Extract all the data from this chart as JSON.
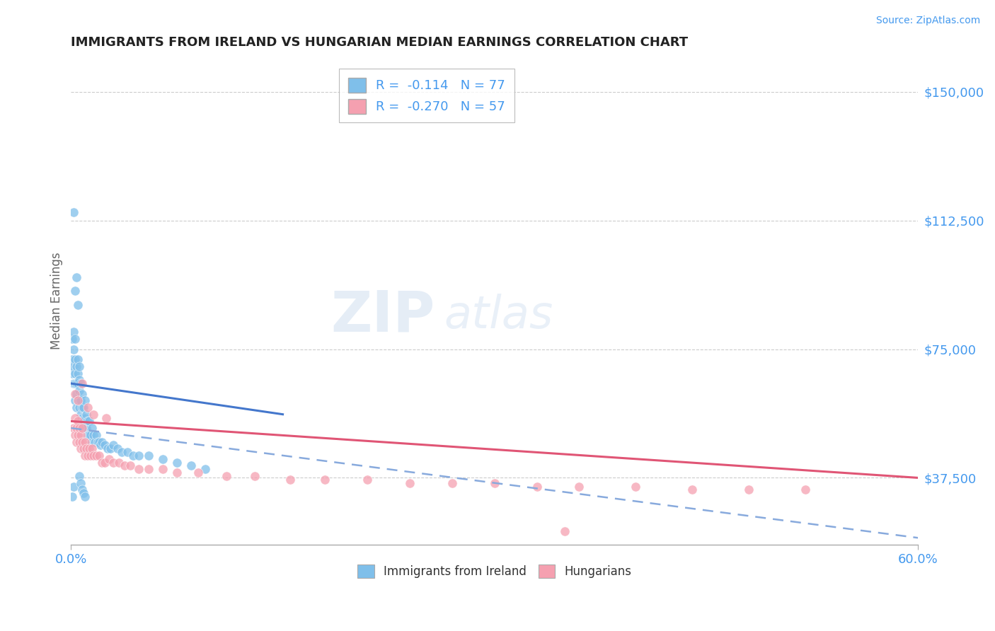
{
  "title": "IMMIGRANTS FROM IRELAND VS HUNGARIAN MEDIAN EARNINGS CORRELATION CHART",
  "source_text": "Source: ZipAtlas.com",
  "ylabel": "Median Earnings",
  "xlim": [
    0.0,
    0.6
  ],
  "ylim": [
    18000,
    160000
  ],
  "yticks": [
    37500,
    75000,
    112500,
    150000
  ],
  "ytick_labels": [
    "$37,500",
    "$75,000",
    "$112,500",
    "$150,000"
  ],
  "xtick_labels": [
    "0.0%",
    "60.0%"
  ],
  "r_ireland": -0.114,
  "n_ireland": 77,
  "r_hungarian": -0.27,
  "n_hungarian": 57,
  "color_ireland": "#7fbfea",
  "color_hungarian": "#f5a0b0",
  "color_ireland_line": "#4477cc",
  "color_hungarian_line": "#e05575",
  "color_dashed_line": "#88aadd",
  "background_color": "#ffffff",
  "grid_color": "#cccccc",
  "title_color": "#222222",
  "axis_label_color": "#666666",
  "tick_color": "#4499ee",
  "legend_edge_color": "#aaaaaa",
  "ireland_x": [
    0.001,
    0.001,
    0.001,
    0.002,
    0.002,
    0.002,
    0.002,
    0.003,
    0.003,
    0.003,
    0.003,
    0.003,
    0.004,
    0.004,
    0.004,
    0.004,
    0.005,
    0.005,
    0.005,
    0.005,
    0.006,
    0.006,
    0.006,
    0.006,
    0.006,
    0.007,
    0.007,
    0.007,
    0.008,
    0.008,
    0.008,
    0.009,
    0.009,
    0.01,
    0.01,
    0.01,
    0.011,
    0.011,
    0.012,
    0.012,
    0.013,
    0.013,
    0.014,
    0.015,
    0.015,
    0.016,
    0.017,
    0.018,
    0.019,
    0.02,
    0.021,
    0.022,
    0.024,
    0.026,
    0.028,
    0.03,
    0.033,
    0.036,
    0.04,
    0.044,
    0.048,
    0.055,
    0.065,
    0.075,
    0.085,
    0.095,
    0.002,
    0.003,
    0.004,
    0.005,
    0.001,
    0.002,
    0.006,
    0.007,
    0.008,
    0.009,
    0.01
  ],
  "ireland_y": [
    68000,
    72000,
    78000,
    65000,
    70000,
    75000,
    80000,
    60000,
    65000,
    68000,
    72000,
    78000,
    58000,
    62000,
    65000,
    70000,
    60000,
    65000,
    68000,
    72000,
    58000,
    60000,
    63000,
    66000,
    70000,
    56000,
    60000,
    65000,
    55000,
    58000,
    62000,
    54000,
    58000,
    52000,
    55000,
    60000,
    52000,
    56000,
    50000,
    54000,
    50000,
    54000,
    50000,
    48000,
    52000,
    50000,
    48000,
    50000,
    48000,
    48000,
    47000,
    48000,
    47000,
    46000,
    46000,
    47000,
    46000,
    45000,
    45000,
    44000,
    44000,
    44000,
    43000,
    42000,
    41000,
    40000,
    115000,
    92000,
    96000,
    88000,
    32000,
    35000,
    38000,
    36000,
    34000,
    33000,
    32000
  ],
  "hungarian_x": [
    0.002,
    0.003,
    0.003,
    0.004,
    0.004,
    0.005,
    0.005,
    0.006,
    0.006,
    0.007,
    0.007,
    0.008,
    0.008,
    0.009,
    0.01,
    0.01,
    0.011,
    0.012,
    0.013,
    0.014,
    0.015,
    0.016,
    0.018,
    0.02,
    0.022,
    0.024,
    0.027,
    0.03,
    0.034,
    0.038,
    0.042,
    0.048,
    0.055,
    0.065,
    0.075,
    0.09,
    0.11,
    0.13,
    0.155,
    0.18,
    0.21,
    0.24,
    0.27,
    0.3,
    0.33,
    0.36,
    0.4,
    0.44,
    0.48,
    0.52,
    0.003,
    0.005,
    0.008,
    0.012,
    0.016,
    0.025,
    0.35
  ],
  "hungarian_y": [
    52000,
    55000,
    50000,
    52000,
    48000,
    50000,
    54000,
    48000,
    52000,
    50000,
    46000,
    48000,
    52000,
    46000,
    48000,
    44000,
    46000,
    44000,
    46000,
    44000,
    46000,
    44000,
    44000,
    44000,
    42000,
    42000,
    43000,
    42000,
    42000,
    41000,
    41000,
    40000,
    40000,
    40000,
    39000,
    39000,
    38000,
    38000,
    37000,
    37000,
    37000,
    36000,
    36000,
    36000,
    35000,
    35000,
    35000,
    34000,
    34000,
    34000,
    62000,
    60000,
    65000,
    58000,
    56000,
    55000,
    22000
  ],
  "ireland_line_x": [
    0.0,
    0.15
  ],
  "ireland_line_y": [
    65000,
    56000
  ],
  "hungarian_line_x": [
    0.0,
    0.6
  ],
  "hungarian_line_y": [
    54000,
    37500
  ],
  "dashed_line_x": [
    0.0,
    0.6
  ],
  "dashed_line_y": [
    52000,
    20000
  ]
}
